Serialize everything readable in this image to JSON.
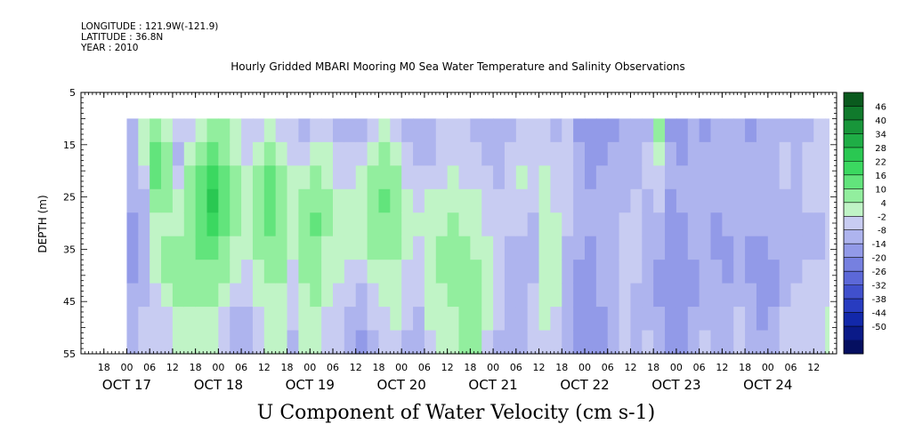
{
  "header": {
    "longitude": "LONGITUDE : 121.9W(-121.9)",
    "latitude": "LATITUDE : 36.8N",
    "year": "YEAR : 2010",
    "title": "Hourly Gridded MBARI Mooring M0 Sea Water Temperature and Salinity Observations"
  },
  "footer": {
    "title": "U Component of Water Velocity (cm s-1)"
  },
  "chart_data": {
    "type": "heatmap",
    "title": "Hourly Gridded MBARI Mooring M0 Sea Water Temperature and Salinity Observations",
    "subtitle": "U Component of Water Velocity (cm s-1)",
    "ylabel": "DEPTH (m)",
    "y_axis": {
      "range": [
        5,
        55
      ],
      "inverted": true,
      "ticks": [
        5,
        15,
        25,
        35,
        45,
        55
      ]
    },
    "x_axis": {
      "start": "Oct 16 2010 12:00",
      "end": "Oct 24 2010 18:00",
      "hour_ticks": [
        "18",
        "00",
        "06",
        "12",
        "18",
        "00",
        "06",
        "12",
        "18",
        "00",
        "06",
        "12",
        "18",
        "00",
        "06",
        "12",
        "18",
        "00",
        "06",
        "12",
        "18",
        "00",
        "06",
        "12",
        "18",
        "00",
        "06",
        "12",
        "18",
        "00",
        "06",
        "12"
      ],
      "date_labels": [
        "OCT 17",
        "OCT 18",
        "OCT 19",
        "OCT 20",
        "OCT 21",
        "OCT 22",
        "OCT 23",
        "OCT 24"
      ]
    },
    "data_coverage": {
      "time_start": "Oct 17 2010 00:00",
      "time_end": "Oct 24 2010 16:00",
      "depth_top": 10,
      "depth_bottom": 55
    },
    "colorbar": {
      "labels": [
        "46",
        "40",
        "34",
        "28",
        "22",
        "16",
        "10",
        "4",
        "-2",
        "-8",
        "-14",
        "-20",
        "-26",
        "-32",
        "-38",
        "-44",
        "-50"
      ],
      "colors": [
        "#0a5a1e",
        "#107a2c",
        "#18963a",
        "#1fae46",
        "#2ac852",
        "#3bd860",
        "#62e47c",
        "#92ee9e",
        "#c0f4c6",
        "#c8ccf2",
        "#aeb4ee",
        "#929ae8",
        "#7680e0",
        "#5c68d8",
        "#4050cc",
        "#283cc0",
        "#1228aa",
        "#0a1a88",
        "#050f60"
      ]
    },
    "grid": false,
    "legend": "colorbar-right",
    "columns": [
      {
        "t": "10-17 00",
        "u": [
          -8,
          -10,
          -12,
          -12,
          -14,
          -14,
          -14,
          -12,
          -10,
          -10
        ]
      },
      {
        "t": "10-17 03",
        "u": [
          2,
          4,
          -4,
          -8,
          -10,
          -12,
          -10,
          -8,
          -6,
          -6
        ]
      },
      {
        "t": "10-17 06",
        "u": [
          10,
          16,
          14,
          6,
          2,
          4,
          2,
          -2,
          -4,
          -6
        ]
      },
      {
        "t": "10-17 09",
        "u": [
          4,
          8,
          10,
          6,
          4,
          6,
          6,
          2,
          -2,
          -4
        ]
      },
      {
        "t": "10-17 12",
        "u": [
          -6,
          -8,
          -2,
          2,
          4,
          6,
          8,
          6,
          2,
          2
        ]
      },
      {
        "t": "10-17 15",
        "u": [
          -4,
          2,
          6,
          8,
          8,
          10,
          8,
          6,
          4,
          2
        ]
      },
      {
        "t": "10-17 18",
        "u": [
          4,
          10,
          14,
          16,
          14,
          12,
          10,
          8,
          4,
          2
        ]
      },
      {
        "t": "10-17 21",
        "u": [
          8,
          14,
          20,
          24,
          20,
          14,
          10,
          6,
          2,
          0
        ]
      },
      {
        "t": "10-18 00",
        "u": [
          6,
          10,
          14,
          16,
          14,
          10,
          6,
          2,
          -2,
          -4
        ]
      },
      {
        "t": "10-18 03",
        "u": [
          0,
          4,
          6,
          6,
          6,
          4,
          0,
          -4,
          -8,
          -10
        ]
      },
      {
        "t": "10-18 06",
        "u": [
          -6,
          -2,
          2,
          4,
          4,
          2,
          -2,
          -6,
          -10,
          -12
        ]
      },
      {
        "t": "10-18 09",
        "u": [
          -4,
          4,
          8,
          10,
          10,
          8,
          4,
          0,
          -4,
          -6
        ]
      },
      {
        "t": "10-18 12",
        "u": [
          2,
          10,
          14,
          14,
          12,
          10,
          6,
          4,
          2,
          0
        ]
      },
      {
        "t": "10-18 15",
        "u": [
          -2,
          4,
          8,
          10,
          10,
          8,
          6,
          4,
          2,
          0
        ]
      },
      {
        "t": "10-18 18",
        "u": [
          -6,
          -2,
          2,
          4,
          4,
          2,
          -2,
          -4,
          -6,
          -8
        ]
      },
      {
        "t": "10-18 21",
        "u": [
          -8,
          -4,
          2,
          6,
          8,
          10,
          8,
          4,
          2,
          0
        ]
      },
      {
        "t": "10-19 00",
        "u": [
          -4,
          2,
          6,
          10,
          12,
          10,
          8,
          6,
          4,
          2
        ]
      },
      {
        "t": "10-19 03",
        "u": [
          -2,
          2,
          4,
          6,
          6,
          4,
          2,
          0,
          -2,
          -4
        ]
      },
      {
        "t": "10-19 06",
        "u": [
          -8,
          -6,
          -2,
          2,
          4,
          4,
          2,
          -2,
          -4,
          -6
        ]
      },
      {
        "t": "10-19 09",
        "u": [
          -10,
          -6,
          -2,
          2,
          4,
          2,
          -2,
          -6,
          -8,
          -10
        ]
      },
      {
        "t": "10-19 12",
        "u": [
          -8,
          -4,
          0,
          2,
          2,
          0,
          -4,
          -8,
          -12,
          -14
        ]
      },
      {
        "t": "10-19 15",
        "u": [
          -4,
          2,
          6,
          8,
          8,
          6,
          2,
          -2,
          -6,
          -8
        ]
      },
      {
        "t": "10-19 18",
        "u": [
          2,
          6,
          10,
          12,
          10,
          8,
          4,
          0,
          -2,
          -4
        ]
      },
      {
        "t": "10-19 21",
        "u": [
          -2,
          2,
          6,
          8,
          8,
          6,
          4,
          2,
          0,
          -2
        ]
      },
      {
        "t": "10-20 00",
        "u": [
          -8,
          -6,
          -2,
          2,
          2,
          0,
          -2,
          -4,
          -6,
          -8
        ]
      },
      {
        "t": "10-20 03",
        "u": [
          -12,
          -10,
          -6,
          -2,
          0,
          -2,
          -4,
          -6,
          -8,
          -8
        ]
      },
      {
        "t": "10-20 06",
        "u": [
          -10,
          -8,
          -4,
          0,
          2,
          4,
          4,
          2,
          0,
          -2
        ]
      },
      {
        "t": "10-20 09",
        "u": [
          -6,
          -4,
          -2,
          2,
          4,
          6,
          6,
          4,
          2,
          0
        ]
      },
      {
        "t": "10-20 12",
        "u": [
          -4,
          -2,
          2,
          4,
          6,
          8,
          8,
          6,
          4,
          4
        ]
      },
      {
        "t": "10-20 15",
        "u": [
          -6,
          -4,
          -2,
          2,
          4,
          6,
          8,
          10,
          10,
          8
        ]
      },
      {
        "t": "10-20 18",
        "u": [
          -8,
          -6,
          -2,
          0,
          2,
          4,
          6,
          8,
          8,
          6
        ]
      },
      {
        "t": "10-20 21",
        "u": [
          -10,
          -8,
          -6,
          -4,
          -2,
          0,
          2,
          2,
          0,
          -2
        ]
      },
      {
        "t": "10-21 00",
        "u": [
          -12,
          -10,
          -8,
          -6,
          -4,
          -4,
          -2,
          -4,
          -6,
          -8
        ]
      },
      {
        "t": "10-21 03",
        "u": [
          -8,
          -6,
          -4,
          -4,
          -6,
          -8,
          -10,
          -10,
          -12,
          -12
        ]
      },
      {
        "t": "10-21 06",
        "u": [
          -4,
          -2,
          0,
          -2,
          -6,
          -8,
          -8,
          -10,
          -10,
          -12
        ]
      },
      {
        "t": "10-21 09",
        "u": [
          -6,
          -4,
          -2,
          -4,
          -8,
          -10,
          -8,
          -6,
          -4,
          -6
        ]
      },
      {
        "t": "10-21 12",
        "u": [
          -4,
          -2,
          0,
          0,
          2,
          4,
          4,
          2,
          0,
          -2
        ]
      },
      {
        "t": "10-21 15",
        "u": [
          -8,
          -6,
          -4,
          -2,
          0,
          2,
          2,
          0,
          -2,
          -4
        ]
      },
      {
        "t": "10-21 18",
        "u": [
          -6,
          -4,
          -2,
          -4,
          -6,
          -8,
          -8,
          -10,
          -12,
          -12
        ]
      },
      {
        "t": "10-21 21",
        "u": [
          -14,
          -12,
          -10,
          -10,
          -12,
          -12,
          -14,
          -14,
          -16,
          -16
        ]
      },
      {
        "t": "10-22 00",
        "u": [
          -18,
          -16,
          -14,
          -12,
          -12,
          -14,
          -14,
          -16,
          -16,
          -18
        ]
      },
      {
        "t": "10-22 03",
        "u": [
          -16,
          -14,
          -12,
          -10,
          -8,
          -10,
          -12,
          -12,
          -14,
          -14
        ]
      },
      {
        "t": "10-22 06",
        "u": [
          -14,
          -12,
          -10,
          -8,
          -8,
          -10,
          -10,
          -10,
          -8,
          -8
        ]
      },
      {
        "t": "10-22 09",
        "u": [
          -12,
          -10,
          -10,
          -8,
          -6,
          -4,
          -2,
          -2,
          -4,
          -6
        ]
      },
      {
        "t": "10-22 12",
        "u": [
          -10,
          -8,
          -8,
          -6,
          -4,
          -4,
          -6,
          -8,
          -10,
          -10
        ]
      },
      {
        "t": "10-22 15",
        "u": [
          -8,
          -6,
          -6,
          -8,
          -10,
          -12,
          -12,
          -10,
          -8,
          -6
        ]
      },
      {
        "t": "10-22 18",
        "u": [
          6,
          4,
          -2,
          -6,
          -10,
          -12,
          -14,
          -14,
          -12,
          -10
        ]
      },
      {
        "t": "10-22 21",
        "u": [
          -14,
          -12,
          -12,
          -14,
          -16,
          -18,
          -18,
          -18,
          -16,
          -14
        ]
      },
      {
        "t": "10-23 00",
        "u": [
          -16,
          -14,
          -12,
          -12,
          -14,
          -16,
          -18,
          -18,
          -16,
          -14
        ]
      },
      {
        "t": "10-23 03",
        "u": [
          -12,
          -10,
          -8,
          -8,
          -10,
          -12,
          -14,
          -14,
          -12,
          -10
        ]
      },
      {
        "t": "10-23 06",
        "u": [
          -14,
          -12,
          -10,
          -10,
          -10,
          -12,
          -12,
          -10,
          -8,
          -6
        ]
      },
      {
        "t": "10-23 09",
        "u": [
          -12,
          -10,
          -10,
          -12,
          -14,
          -14,
          -12,
          -10,
          -8,
          -8
        ]
      },
      {
        "t": "10-23 12",
        "u": [
          -10,
          -8,
          -8,
          -10,
          -12,
          -14,
          -14,
          -12,
          -10,
          -8
        ]
      },
      {
        "t": "10-23 15",
        "u": [
          -12,
          -10,
          -10,
          -10,
          -12,
          -12,
          -10,
          -8,
          -6,
          -4
        ]
      },
      {
        "t": "10-23 18",
        "u": [
          -14,
          -12,
          -12,
          -12,
          -12,
          -14,
          -14,
          -12,
          -10,
          -8
        ]
      },
      {
        "t": "10-23 21",
        "u": [
          -12,
          -12,
          -10,
          -10,
          -12,
          -14,
          -16,
          -16,
          -14,
          -12
        ]
      },
      {
        "t": "10-24 00",
        "u": [
          -10,
          -10,
          -8,
          -8,
          -10,
          -12,
          -14,
          -14,
          -12,
          -10
        ]
      },
      {
        "t": "10-24 03",
        "u": [
          -8,
          -6,
          -6,
          -8,
          -10,
          -10,
          -10,
          -8,
          -6,
          -4
        ]
      },
      {
        "t": "10-24 06",
        "u": [
          -10,
          -8,
          -8,
          -8,
          -10,
          -10,
          -8,
          -6,
          -4,
          -2
        ]
      },
      {
        "t": "10-24 09",
        "u": [
          -8,
          -6,
          -6,
          -6,
          -8,
          -8,
          -6,
          -4,
          -4,
          -4
        ]
      },
      {
        "t": "10-24 12",
        "u": [
          -6,
          -6,
          -4,
          -6,
          -8,
          -8,
          -6,
          -6,
          -4,
          -2
        ]
      },
      {
        "t": "10-24 15",
        "u": [
          -4,
          -2,
          -2,
          -4,
          -6,
          -6,
          -4,
          -2,
          0,
          2
        ]
      }
    ]
  }
}
